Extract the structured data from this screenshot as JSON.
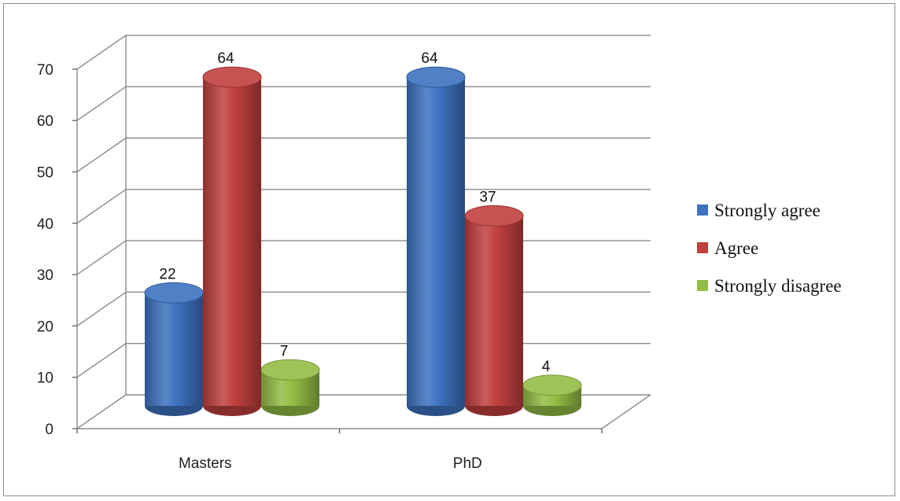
{
  "chart_data": {
    "type": "bar",
    "style": "3d-cylinder",
    "categories": [
      "Masters",
      "PhD"
    ],
    "series": [
      {
        "name": "Strongly agree",
        "values": [
          22,
          64
        ],
        "color": "#3d72c0"
      },
      {
        "name": "Agree",
        "values": [
          64,
          37
        ],
        "color": "#c0403e"
      },
      {
        "name": "Strongly disagree",
        "values": [
          7,
          4
        ],
        "color": "#93bd45"
      }
    ],
    "y_ticks": [
      "0",
      "10",
      "20",
      "30",
      "40",
      "50",
      "60",
      "70"
    ],
    "ylim": [
      0,
      70
    ],
    "grid": true,
    "legend_position": "right",
    "title": "",
    "xlabel": "",
    "ylabel": ""
  }
}
